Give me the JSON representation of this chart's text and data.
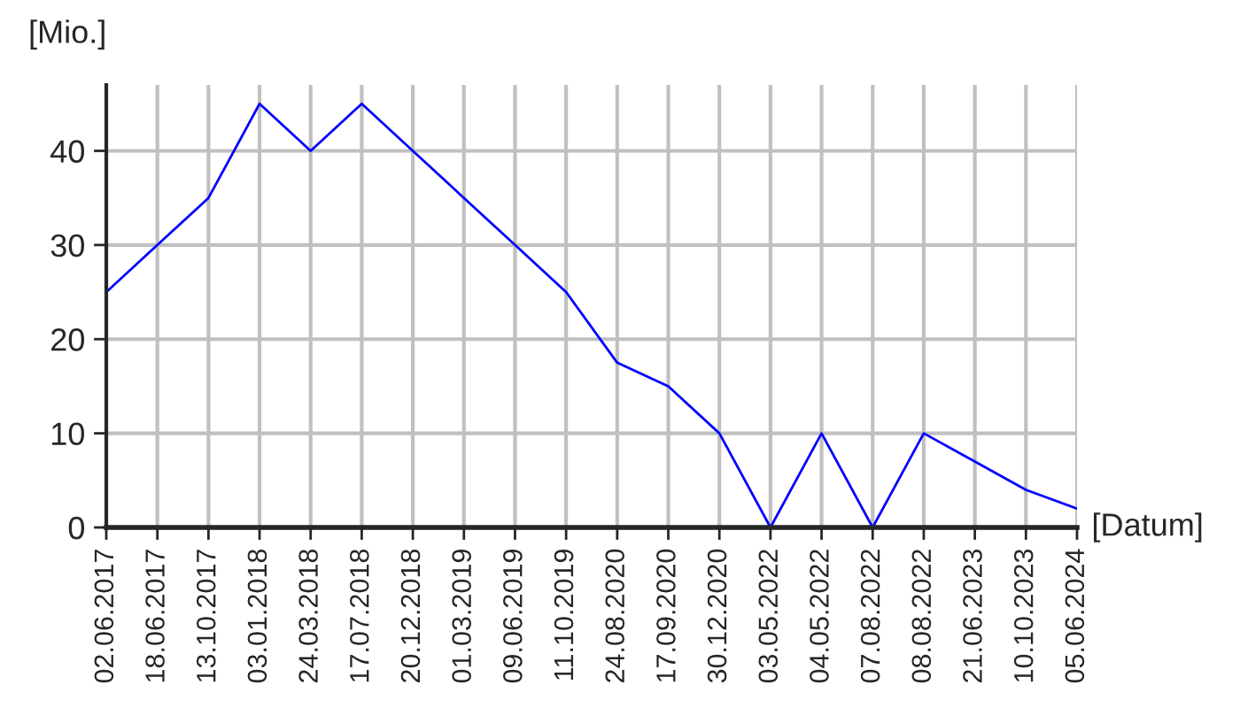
{
  "chart_data": {
    "type": "line",
    "xlabel": "[Datum]",
    "ylabel": "[Mio.]",
    "categories": [
      "02.06.2017",
      "18.06.2017",
      "13.10.2017",
      "03.01.2018",
      "24.03.2018",
      "17.07.2018",
      "20.12.2018",
      "01.03.2019",
      "09.06.2019",
      "11.10.2019",
      "24.08.2020",
      "17.09.2020",
      "30.12.2020",
      "03.05.2022",
      "04.05.2022",
      "07.08.2022",
      "08.08.2022",
      "21.06.2023",
      "10.10.2023",
      "05.06.2024"
    ],
    "series": [
      {
        "color": "#0000ff",
        "values": [
          25,
          30,
          35,
          45,
          40,
          45,
          40,
          35,
          30,
          25,
          17.5,
          15,
          10,
          0,
          10,
          0,
          10,
          7,
          4,
          2
        ]
      }
    ],
    "ylim": [
      0,
      47
    ],
    "yticks": [
      0,
      10,
      20,
      30,
      40
    ],
    "grid": true,
    "marker": "none",
    "line_style": "solid"
  }
}
